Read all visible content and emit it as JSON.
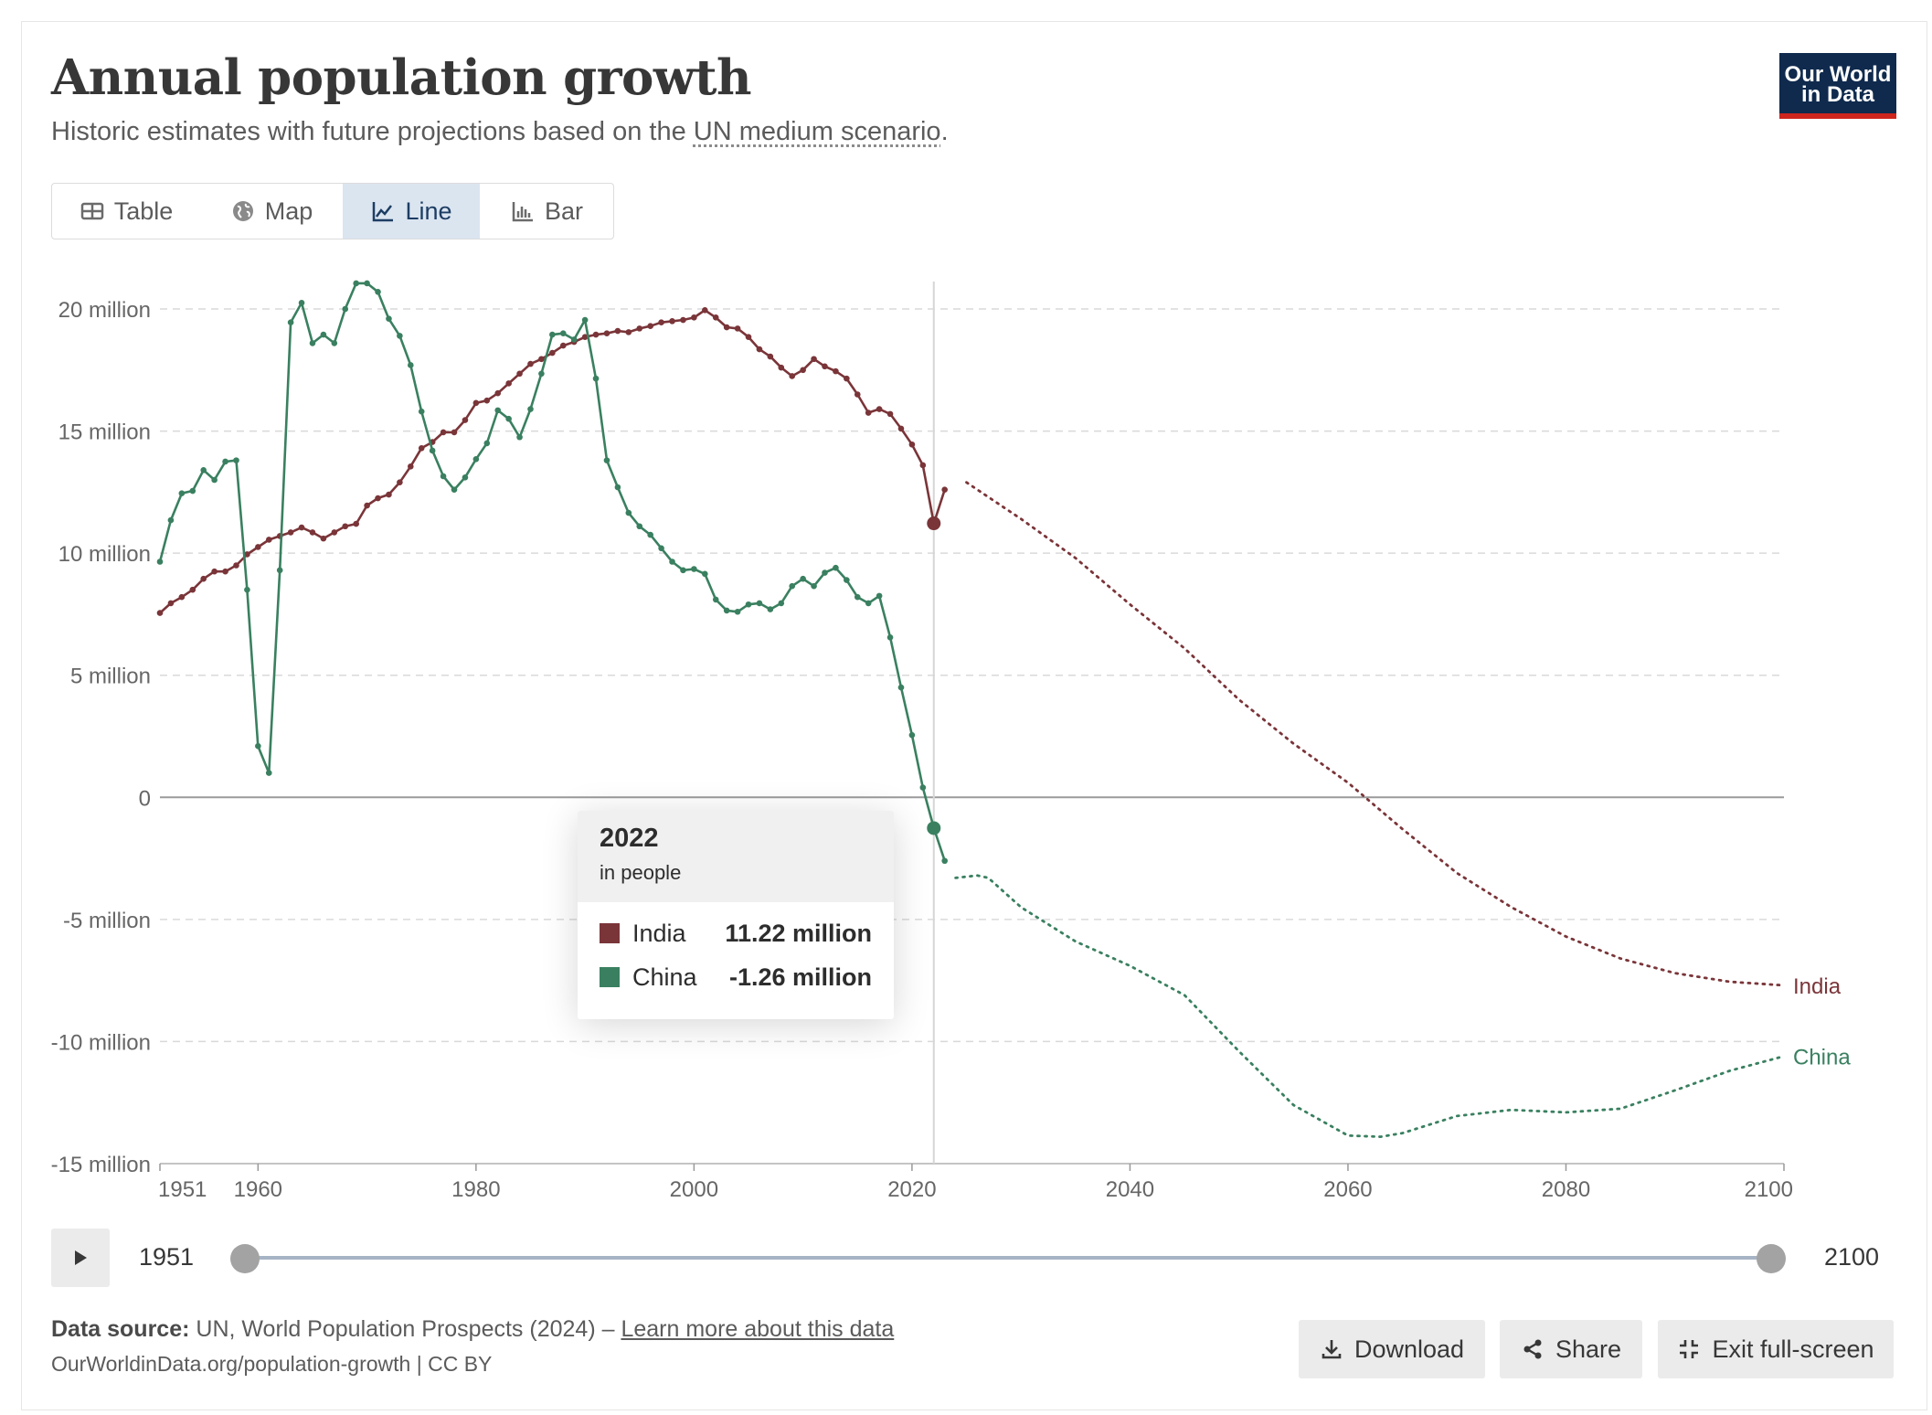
{
  "header": {
    "title": "Annual population growth",
    "subtitle_prefix": "Historic estimates with future projections based on the ",
    "subtitle_link": "UN medium scenario",
    "subtitle_suffix": ".",
    "logo_line1": "Our World",
    "logo_line2": "in Data"
  },
  "tabs": [
    {
      "label": "Table",
      "icon": "table-icon"
    },
    {
      "label": "Map",
      "icon": "globe-icon"
    },
    {
      "label": "Line",
      "icon": "line-chart-icon",
      "active": true
    },
    {
      "label": "Bar",
      "icon": "bar-chart-icon"
    }
  ],
  "colors": {
    "india": "#7a3539",
    "china": "#3a8060",
    "grid": "#d9d9d9",
    "zero": "#9a9a9a",
    "logo_bg": "#0f2a4d",
    "logo_accent": "#ce261e"
  },
  "tooltip": {
    "year": "2022",
    "unit": "in people",
    "rows": [
      {
        "name": "India",
        "value": "11.22 million"
      },
      {
        "name": "China",
        "value": "-1.26 million"
      }
    ]
  },
  "timeline": {
    "start": "1951",
    "end": "2100",
    "play_icon": "play-icon"
  },
  "footer": {
    "source_label": "Data source:",
    "source_text": " UN, World Population Prospects (2024) – ",
    "learn_more": "Learn more about this data",
    "url": "OurWorldinData.org/population-growth | CC BY",
    "buttons": [
      {
        "label": "Download",
        "icon": "download-icon"
      },
      {
        "label": "Share",
        "icon": "share-icon"
      },
      {
        "label": "Exit full-screen",
        "icon": "exit-fullscreen-icon"
      }
    ]
  },
  "chart_data": {
    "type": "line",
    "title": "Annual population growth",
    "xlim": [
      1951,
      2100
    ],
    "ylim": [
      -15000000,
      20000000
    ],
    "x_ticks": [
      1951,
      1960,
      1980,
      2000,
      2020,
      2040,
      2060,
      2080,
      2100
    ],
    "y_ticks": [
      {
        "value": 20000000,
        "label": "20 million"
      },
      {
        "value": 15000000,
        "label": "15 million"
      },
      {
        "value": 10000000,
        "label": "10 million"
      },
      {
        "value": 5000000,
        "label": "5 million"
      },
      {
        "value": 0,
        "label": "0"
      },
      {
        "value": -5000000,
        "label": "-5 million"
      },
      {
        "value": -10000000,
        "label": "-10 million"
      },
      {
        "value": -15000000,
        "label": "-15 million"
      }
    ],
    "highlight_year": 2022,
    "series": [
      {
        "name": "India",
        "color": "#7a3539",
        "label": "India",
        "historic_x": [
          1951,
          1952,
          1953,
          1954,
          1955,
          1956,
          1957,
          1958,
          1959,
          1960,
          1961,
          1962,
          1963,
          1964,
          1965,
          1966,
          1967,
          1968,
          1969,
          1970,
          1971,
          1972,
          1973,
          1974,
          1975,
          1976,
          1977,
          1978,
          1979,
          1980,
          1981,
          1982,
          1983,
          1984,
          1985,
          1986,
          1987,
          1988,
          1989,
          1990,
          1991,
          1992,
          1993,
          1994,
          1995,
          1996,
          1997,
          1998,
          1999,
          2000,
          2001,
          2002,
          2003,
          2004,
          2005,
          2006,
          2007,
          2008,
          2009,
          2010,
          2011,
          2012,
          2013,
          2014,
          2015,
          2016,
          2017,
          2018,
          2019,
          2020,
          2021,
          2022,
          2023
        ],
        "historic_y": [
          7.55,
          7.95,
          8.2,
          8.5,
          8.95,
          9.25,
          9.25,
          9.5,
          9.95,
          10.25,
          10.55,
          10.7,
          10.85,
          11.05,
          10.85,
          10.6,
          10.85,
          11.1,
          11.2,
          11.95,
          12.25,
          12.4,
          12.9,
          13.55,
          14.3,
          14.55,
          14.95,
          14.95,
          15.45,
          16.15,
          16.25,
          16.55,
          16.95,
          17.35,
          17.75,
          17.95,
          18.2,
          18.5,
          18.65,
          18.85,
          18.95,
          19.0,
          19.1,
          19.05,
          19.2,
          19.3,
          19.45,
          19.5,
          19.55,
          19.65,
          19.95,
          19.65,
          19.25,
          19.2,
          18.85,
          18.35,
          18.05,
          17.6,
          17.25,
          17.5,
          17.95,
          17.65,
          17.45,
          17.15,
          16.5,
          15.75,
          15.9,
          15.7,
          15.1,
          14.45,
          13.6,
          11.22,
          12.6
        ],
        "projection_x": [
          2023,
          2025,
          2030,
          2035,
          2040,
          2045,
          2050,
          2055,
          2060,
          2065,
          2070,
          2075,
          2080,
          2085,
          2090,
          2095,
          2100
        ],
        "projection_y": [
          12.6,
          12.9,
          11.4,
          9.8,
          7.9,
          6.1,
          4.0,
          2.2,
          0.6,
          -1.3,
          -3.1,
          -4.5,
          -5.7,
          -6.6,
          -7.2,
          -7.55,
          -7.7
        ]
      },
      {
        "name": "China",
        "color": "#3a8060",
        "label": "China",
        "historic_x": [
          1951,
          1952,
          1953,
          1954,
          1955,
          1956,
          1957,
          1958,
          1959,
          1960,
          1961,
          1962,
          1963,
          1964,
          1965,
          1966,
          1967,
          1968,
          1969,
          1970,
          1971,
          1972,
          1973,
          1974,
          1975,
          1976,
          1977,
          1978,
          1979,
          1980,
          1981,
          1982,
          1983,
          1984,
          1985,
          1986,
          1987,
          1988,
          1989,
          1990,
          1991,
          1992,
          1993,
          1994,
          1995,
          1996,
          1997,
          1998,
          1999,
          2000,
          2001,
          2002,
          2003,
          2004,
          2005,
          2006,
          2007,
          2008,
          2009,
          2010,
          2011,
          2012,
          2013,
          2014,
          2015,
          2016,
          2017,
          2018,
          2019,
          2020,
          2021,
          2022,
          2023
        ],
        "historic_y": [
          9.65,
          11.35,
          12.45,
          12.55,
          13.4,
          13.0,
          13.75,
          13.8,
          8.5,
          2.1,
          1.0,
          9.3,
          19.45,
          20.25,
          18.6,
          18.95,
          18.6,
          20.0,
          21.05,
          21.05,
          20.7,
          19.6,
          18.9,
          17.7,
          15.8,
          14.2,
          13.15,
          12.6,
          13.1,
          13.85,
          14.5,
          15.85,
          15.5,
          14.75,
          15.9,
          17.35,
          18.95,
          19.0,
          18.75,
          19.55,
          17.15,
          13.8,
          12.7,
          11.65,
          11.1,
          10.75,
          10.2,
          9.65,
          9.3,
          9.35,
          9.15,
          8.1,
          7.65,
          7.6,
          7.9,
          7.95,
          7.7,
          7.95,
          8.65,
          8.95,
          8.65,
          9.2,
          9.4,
          8.9,
          8.2,
          7.95,
          8.25,
          6.55,
          4.5,
          2.55,
          0.4,
          -1.26,
          -2.6
        ],
        "projection_x": [
          2023,
          2024,
          2025,
          2026,
          2027,
          2030,
          2035,
          2040,
          2045,
          2050,
          2055,
          2060,
          2063,
          2065,
          2070,
          2075,
          2080,
          2085,
          2090,
          2095,
          2100
        ],
        "projection_y": [
          -2.6,
          -3.3,
          -3.25,
          -3.2,
          -3.3,
          -4.5,
          -5.9,
          -6.9,
          -8.1,
          -10.4,
          -12.6,
          -13.85,
          -13.9,
          -13.75,
          -13.05,
          -12.8,
          -12.9,
          -12.75,
          -12.0,
          -11.2,
          -10.6
        ]
      }
    ]
  }
}
